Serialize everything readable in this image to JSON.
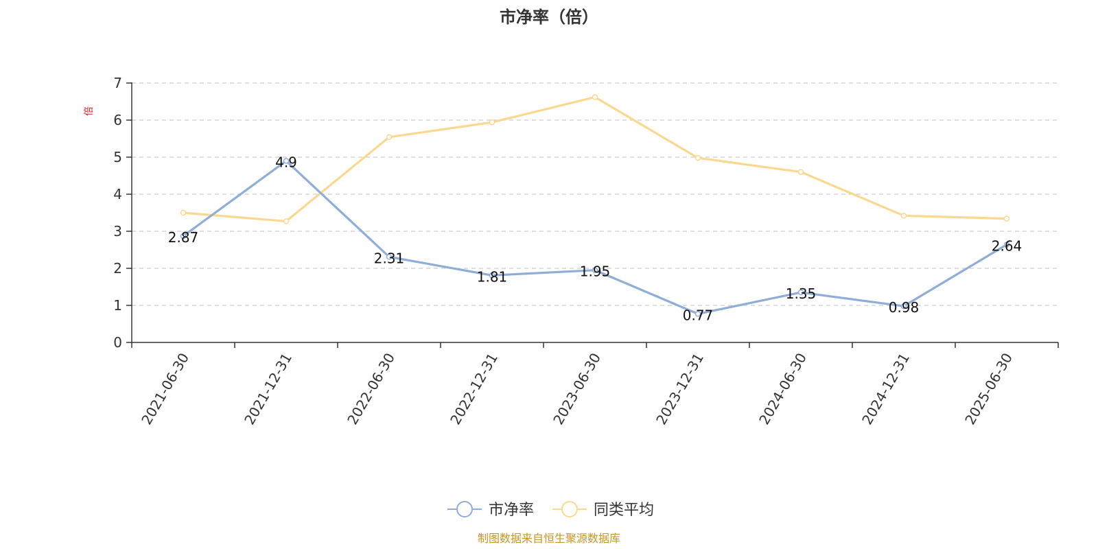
{
  "chart_data": {
    "type": "line",
    "title": "市净率（倍）",
    "ylabel": "倍",
    "xlabel": "",
    "ylim": [
      0,
      7
    ],
    "yticks": [
      0,
      1,
      2,
      3,
      4,
      5,
      6,
      7
    ],
    "grid": true,
    "legend_position": "bottom-center",
    "categories": [
      "2021-06-30",
      "2021-12-31",
      "2022-06-30",
      "2022-12-31",
      "2023-06-30",
      "2023-12-31",
      "2024-06-30",
      "2024-12-31",
      "2025-06-30"
    ],
    "series": [
      {
        "name": "市净率",
        "color": "#8eaed9",
        "values": [
          2.87,
          4.9,
          2.31,
          1.81,
          1.95,
          0.77,
          1.35,
          0.98,
          2.64
        ],
        "labels": [
          "2.87",
          "4.9",
          "2.31",
          "1.81",
          "1.95",
          "0.77",
          "1.35",
          "0.98",
          "2.64"
        ]
      },
      {
        "name": "同类平均",
        "color": "#fad88f",
        "values": [
          3.5,
          3.27,
          5.54,
          5.94,
          6.62,
          4.98,
          4.6,
          3.42,
          3.34
        ]
      }
    ]
  },
  "source": "制图数据来自恒生聚源数据库"
}
